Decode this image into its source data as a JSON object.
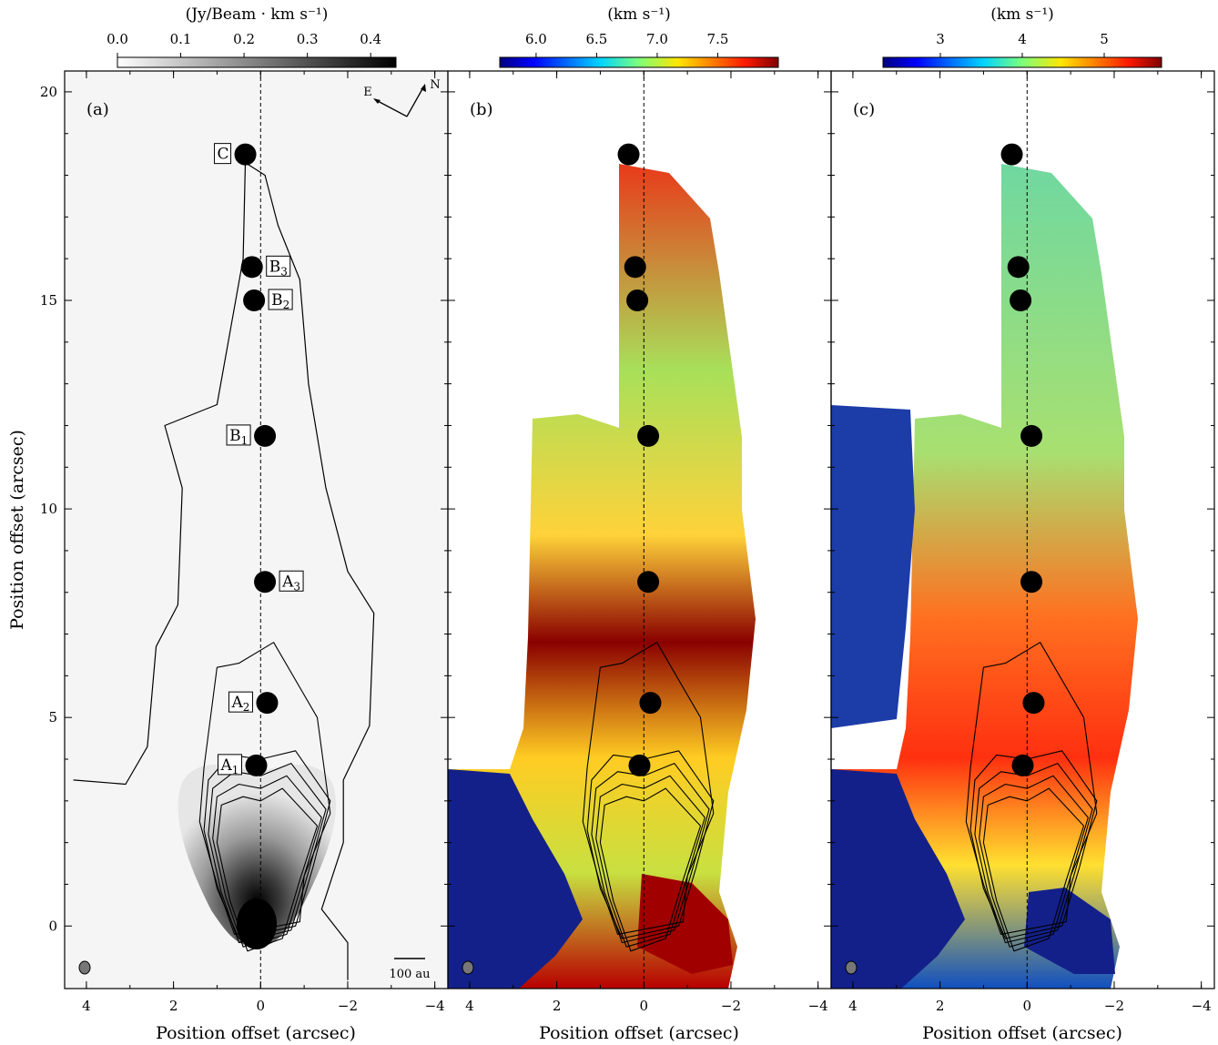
{
  "chart_data": [
    {
      "type": "heatmap",
      "panel_label": "(a)",
      "colorbar": {
        "title": "(Jy/Beam · km s⁻¹)",
        "ticks": [
          "0.0",
          "0.1",
          "0.2",
          "0.3",
          "0.4"
        ],
        "range": [
          0.0,
          0.44
        ],
        "colormap": "greys"
      },
      "xlabel": "Position offset (arcsec)",
      "ylabel": "Position offset (arcsec)",
      "x_ticks": [
        "4",
        "2",
        "0",
        "−2",
        "−4"
      ],
      "y_ticks": [
        "0",
        "5",
        "10",
        "15",
        "20"
      ],
      "xlim": [
        4.5,
        -4.3
      ],
      "ylim": [
        -1.5,
        20.5
      ],
      "x_inverted": true,
      "compass": {
        "east": "E",
        "north": "N"
      },
      "scale_bar": "100 au",
      "knots": [
        {
          "name": "C",
          "x": 0.35,
          "y": 18.5,
          "label_side": "left"
        },
        {
          "name": "B3",
          "x": 0.2,
          "y": 15.8,
          "label_side": "right"
        },
        {
          "name": "B2",
          "x": 0.15,
          "y": 15.0,
          "label_side": "right"
        },
        {
          "name": "B1",
          "x": -0.1,
          "y": 11.75,
          "label_side": "left"
        },
        {
          "name": "A3",
          "x": -0.1,
          "y": 8.25,
          "label_side": "right"
        },
        {
          "name": "A2",
          "x": -0.15,
          "y": 5.35,
          "label_side": "left"
        },
        {
          "name": "A1",
          "x": 0.1,
          "y": 3.85,
          "label_side": "left"
        }
      ]
    },
    {
      "type": "heatmap",
      "panel_label": "(b)",
      "colorbar": {
        "title": "(km s⁻¹)",
        "ticks": [
          "6.0",
          "6.5",
          "7.0",
          "7.5"
        ],
        "range": [
          5.7,
          8.0
        ],
        "colormap": "jet"
      },
      "xlabel": "Position offset (arcsec)",
      "x_ticks": [
        "4",
        "2",
        "0",
        "−2",
        "−4"
      ],
      "xlim": [
        4.5,
        -4.3
      ],
      "ylim": [
        -1.5,
        20.5
      ]
    },
    {
      "type": "heatmap",
      "panel_label": "(c)",
      "colorbar": {
        "title": "(km s⁻¹)",
        "ticks": [
          "3",
          "4",
          "5"
        ],
        "range": [
          2.3,
          5.7
        ],
        "colormap": "jet"
      },
      "xlabel": "Position offset (arcsec)",
      "x_ticks": [
        "4",
        "2",
        "0",
        "−2",
        "−4"
      ],
      "xlim": [
        4.5,
        -4.3
      ],
      "ylim": [
        -1.5,
        20.5
      ]
    }
  ]
}
